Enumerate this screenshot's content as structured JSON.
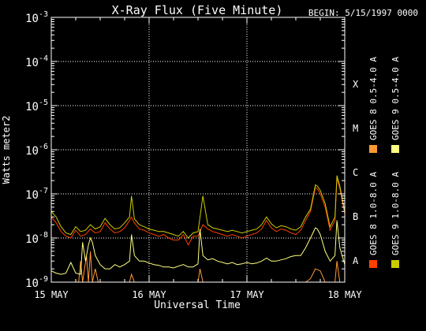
{
  "chart_data": {
    "type": "line",
    "title": "X-Ray Flux (Five Minute)",
    "begin_label": "BEGIN: 5/15/1997 0000",
    "ylabel": "Watts meter2",
    "xlabel": "Universal Time",
    "yscale": "log",
    "ylim": [
      1e-09,
      0.001
    ],
    "xlim": [
      0,
      3
    ],
    "x_unit": "days since 15 May 1997 0000 UT",
    "x_ticks": [
      {
        "x": 0,
        "label": "15 MAY"
      },
      {
        "x": 1,
        "label": "16 MAY"
      },
      {
        "x": 2,
        "label": "17 MAY"
      },
      {
        "x": 3,
        "label": "18 MAY"
      }
    ],
    "y_ticks": [
      {
        "exp": -9,
        "base": "10",
        "sup": "-9"
      },
      {
        "exp": -8,
        "base": "10",
        "sup": "-8"
      },
      {
        "exp": -7,
        "base": "10",
        "sup": "-7"
      },
      {
        "exp": -6,
        "base": "10",
        "sup": "-6"
      },
      {
        "exp": -5,
        "base": "10",
        "sup": "-5"
      },
      {
        "exp": -4,
        "base": "10",
        "sup": "-4"
      },
      {
        "exp": -3,
        "base": "10",
        "sup": "-3"
      }
    ],
    "flare_classes": [
      {
        "exp": -8,
        "label": "A"
      },
      {
        "exp": -7,
        "label": "B"
      },
      {
        "exp": -6,
        "label": "C"
      },
      {
        "exp": -5,
        "label": "M"
      },
      {
        "exp": -4,
        "label": "X"
      }
    ],
    "grid": {
      "horizontal": true,
      "vertical_days": true
    },
    "legend_placement": "right, vertical",
    "series": [
      {
        "name": "GOES 8 1.0-8.0 A",
        "color": "#ff4000",
        "x": [
          0,
          0.05,
          0.1,
          0.15,
          0.2,
          0.25,
          0.3,
          0.35,
          0.4,
          0.45,
          0.5,
          0.55,
          0.6,
          0.65,
          0.7,
          0.75,
          0.8,
          0.82,
          0.85,
          0.9,
          0.95,
          1.0,
          1.05,
          1.1,
          1.15,
          1.2,
          1.25,
          1.3,
          1.35,
          1.4,
          1.45,
          1.5,
          1.55,
          1.6,
          1.65,
          1.7,
          1.75,
          1.8,
          1.85,
          1.9,
          1.95,
          2.0,
          2.05,
          2.1,
          2.15,
          2.2,
          2.25,
          2.3,
          2.35,
          2.4,
          2.45,
          2.5,
          2.55,
          2.6,
          2.65,
          2.7,
          2.72,
          2.75,
          2.8,
          2.85,
          2.9,
          2.92,
          2.95,
          3.0
        ],
        "y": [
          3e-08,
          2.2e-08,
          1.4e-08,
          1.1e-08,
          1e-08,
          1.5e-08,
          1.1e-08,
          1.2e-08,
          1.6e-08,
          1.3e-08,
          1.4e-08,
          2.2e-08,
          1.6e-08,
          1.3e-08,
          1.4e-08,
          1.7e-08,
          2.5e-08,
          3e-08,
          2.2e-08,
          1.6e-08,
          1.5e-08,
          1.3e-08,
          1.2e-08,
          1.1e-08,
          1.2e-08,
          1e-08,
          9e-09,
          9e-09,
          1.2e-08,
          7e-09,
          1.1e-08,
          1.1e-08,
          2e-08,
          1.6e-08,
          1.4e-08,
          1.3e-08,
          1.2e-08,
          1.1e-08,
          1.2e-08,
          1.1e-08,
          1e-08,
          1.1e-08,
          1.2e-08,
          1.3e-08,
          1.6e-08,
          2.5e-08,
          1.7e-08,
          1.4e-08,
          1.6e-08,
          1.5e-08,
          1.3e-08,
          1.2e-08,
          1.5e-08,
          2.5e-08,
          4e-08,
          1.4e-07,
          1.3e-07,
          1e-07,
          5e-08,
          1.5e-08,
          2.5e-08,
          2.3e-07,
          1.3e-07,
          3.5e-08
        ]
      },
      {
        "name": "GOES 8 0.5-4.0 A",
        "color": "#ff9933",
        "x": [
          0,
          0.2,
          0.28,
          0.3,
          0.32,
          0.36,
          0.38,
          0.4,
          0.42,
          0.45,
          0.48,
          0.6,
          0.7,
          0.8,
          0.82,
          0.85,
          0.9,
          1.0,
          1.1,
          1.2,
          1.4,
          1.5,
          1.52,
          1.55,
          1.6,
          1.8,
          2.0,
          2.2,
          2.4,
          2.6,
          2.65,
          2.7,
          2.75,
          2.8,
          2.9,
          2.92,
          2.95,
          3.0
        ],
        "y": [
          1e-09,
          1e-09,
          1e-09,
          3e-09,
          1e-09,
          4e-09,
          1e-09,
          5e-09,
          1e-09,
          2e-09,
          1e-09,
          1e-09,
          1e-09,
          1e-09,
          1.5e-09,
          1e-09,
          1e-09,
          1e-09,
          1e-09,
          1e-09,
          1e-09,
          1e-09,
          2e-09,
          1e-09,
          1e-09,
          1e-09,
          1e-09,
          1e-09,
          1e-09,
          1e-09,
          1.2e-09,
          2e-09,
          1.8e-09,
          1e-09,
          1e-09,
          3e-09,
          1e-09,
          1e-09
        ]
      },
      {
        "name": "GOES 9 1.0-8.0 A",
        "color": "#cccc00",
        "x": [
          0,
          0.05,
          0.1,
          0.15,
          0.2,
          0.25,
          0.3,
          0.35,
          0.4,
          0.45,
          0.5,
          0.55,
          0.6,
          0.65,
          0.7,
          0.75,
          0.8,
          0.82,
          0.85,
          0.9,
          0.95,
          1.0,
          1.05,
          1.1,
          1.15,
          1.2,
          1.25,
          1.3,
          1.35,
          1.4,
          1.45,
          1.5,
          1.55,
          1.6,
          1.65,
          1.7,
          1.75,
          1.8,
          1.85,
          1.9,
          1.95,
          2.0,
          2.05,
          2.1,
          2.15,
          2.2,
          2.25,
          2.3,
          2.35,
          2.4,
          2.45,
          2.5,
          2.55,
          2.6,
          2.65,
          2.7,
          2.72,
          2.75,
          2.8,
          2.85,
          2.9,
          2.92,
          2.95,
          3.0
        ],
        "y": [
          4e-08,
          3e-08,
          1.8e-08,
          1.3e-08,
          1.2e-08,
          1.8e-08,
          1.4e-08,
          1.5e-08,
          2e-08,
          1.6e-08,
          1.8e-08,
          2.8e-08,
          2e-08,
          1.6e-08,
          1.7e-08,
          2.2e-08,
          3e-08,
          9e-08,
          2.7e-08,
          2e-08,
          1.8e-08,
          1.6e-08,
          1.5e-08,
          1.4e-08,
          1.4e-08,
          1.3e-08,
          1.2e-08,
          1.1e-08,
          1.4e-08,
          1e-08,
          1.3e-08,
          1.4e-08,
          9e-08,
          2e-08,
          1.7e-08,
          1.6e-08,
          1.5e-08,
          1.4e-08,
          1.5e-08,
          1.4e-08,
          1.3e-08,
          1.4e-08,
          1.5e-08,
          1.6e-08,
          2e-08,
          3e-08,
          2.1e-08,
          1.7e-08,
          1.9e-08,
          1.8e-08,
          1.6e-08,
          1.5e-08,
          1.8e-08,
          3e-08,
          4.5e-08,
          1.6e-07,
          1.5e-07,
          1.2e-07,
          6e-08,
          1.8e-08,
          3e-08,
          2.6e-07,
          1.5e-07,
          4e-08
        ]
      },
      {
        "name": "GOES 9 0.5-4.0 A",
        "color": "#ffff80",
        "x": [
          0,
          0.05,
          0.1,
          0.15,
          0.2,
          0.25,
          0.3,
          0.32,
          0.35,
          0.38,
          0.4,
          0.42,
          0.45,
          0.5,
          0.55,
          0.6,
          0.65,
          0.7,
          0.75,
          0.8,
          0.82,
          0.85,
          0.9,
          0.95,
          1.0,
          1.05,
          1.1,
          1.15,
          1.2,
          1.25,
          1.3,
          1.35,
          1.4,
          1.45,
          1.5,
          1.52,
          1.55,
          1.6,
          1.65,
          1.7,
          1.75,
          1.8,
          1.85,
          1.9,
          1.95,
          2.0,
          2.05,
          2.1,
          2.15,
          2.2,
          2.25,
          2.3,
          2.35,
          2.4,
          2.45,
          2.5,
          2.55,
          2.6,
          2.65,
          2.7,
          2.72,
          2.75,
          2.8,
          2.85,
          2.9,
          2.92,
          2.95,
          3.0
        ],
        "y": [
          1.8e-09,
          1.6e-09,
          1.5e-09,
          1.6e-09,
          2.8e-09,
          1.6e-09,
          1.5e-09,
          8e-09,
          3e-09,
          7e-09,
          1e-08,
          8e-09,
          4e-09,
          2.5e-09,
          2e-09,
          2e-09,
          2.5e-09,
          2.2e-09,
          2.5e-09,
          3e-09,
          1.2e-08,
          4e-09,
          3e-09,
          3e-09,
          2.7e-09,
          2.5e-09,
          2.4e-09,
          2.2e-09,
          2.2e-09,
          2.1e-09,
          2.3e-09,
          2.5e-09,
          2.2e-09,
          2.2e-09,
          2.6e-09,
          1.6e-08,
          4e-09,
          3.2e-09,
          3.4e-09,
          3e-09,
          2.8e-09,
          2.6e-09,
          2.8e-09,
          2.5e-09,
          2.6e-09,
          2.8e-09,
          2.6e-09,
          2.7e-09,
          3e-09,
          3.5e-09,
          3e-09,
          3e-09,
          3.2e-09,
          3.4e-09,
          3.8e-09,
          4e-09,
          4e-09,
          6e-09,
          1e-08,
          1.7e-08,
          1.6e-08,
          1.2e-08,
          5e-09,
          3e-09,
          4e-09,
          2.5e-08,
          6e-09,
          2.5e-09
        ]
      }
    ]
  }
}
